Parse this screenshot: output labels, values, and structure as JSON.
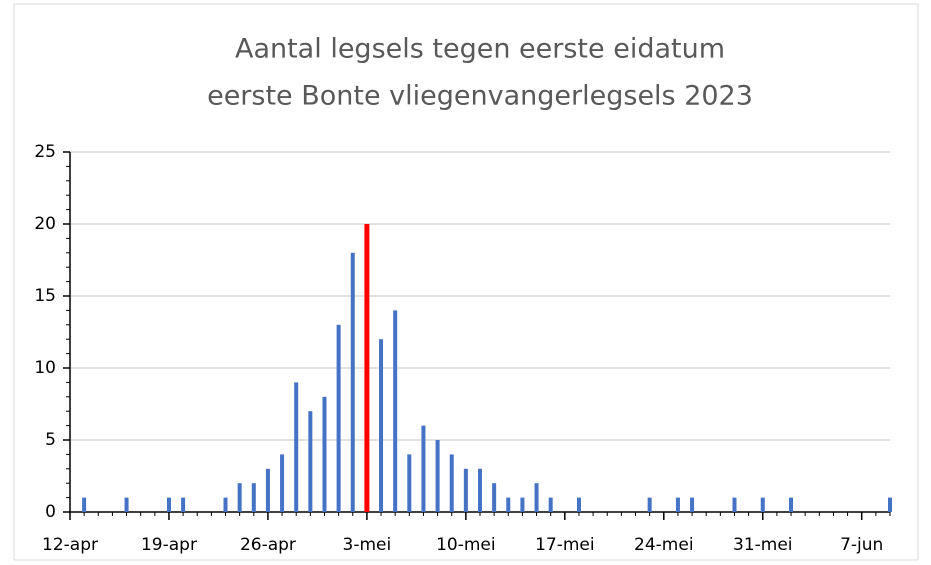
{
  "chart_data": {
    "type": "bar",
    "title": [
      "Aantal legsels tegen eerste eidatum",
      "eerste Bonte vliegenvangerlegsels 2023"
    ],
    "categories": [
      "12-apr",
      null,
      null,
      null,
      null,
      null,
      null,
      "19-apr",
      null,
      null,
      null,
      null,
      null,
      null,
      "26-apr",
      null,
      null,
      null,
      null,
      null,
      null,
      "3-mei",
      null,
      null,
      null,
      null,
      null,
      null,
      "10-mei",
      null,
      null,
      null,
      null,
      null,
      null,
      "17-mei",
      null,
      null,
      null,
      null,
      null,
      null,
      "24-mei",
      null,
      null,
      null,
      null,
      null,
      null,
      "31-mei",
      null,
      null,
      null,
      null,
      null,
      null,
      "7-jun",
      null,
      null
    ],
    "values": [
      0,
      1,
      0,
      0,
      1,
      0,
      0,
      1,
      1,
      0,
      0,
      1,
      2,
      2,
      3,
      4,
      9,
      7,
      8,
      13,
      18,
      20,
      12,
      14,
      4,
      6,
      5,
      4,
      3,
      3,
      2,
      1,
      1,
      2,
      1,
      0,
      1,
      0,
      0,
      0,
      0,
      1,
      0,
      1,
      1,
      0,
      0,
      1,
      0,
      1,
      0,
      1,
      0,
      0,
      0,
      0,
      0,
      0,
      1
    ],
    "color": "#4472c4",
    "highlight_color": "#ff0000",
    "highlight": "3-mei",
    "ylim": [
      0,
      25
    ],
    "yticks": [
      0,
      5,
      10,
      15,
      20,
      25
    ],
    "grid": true
  }
}
